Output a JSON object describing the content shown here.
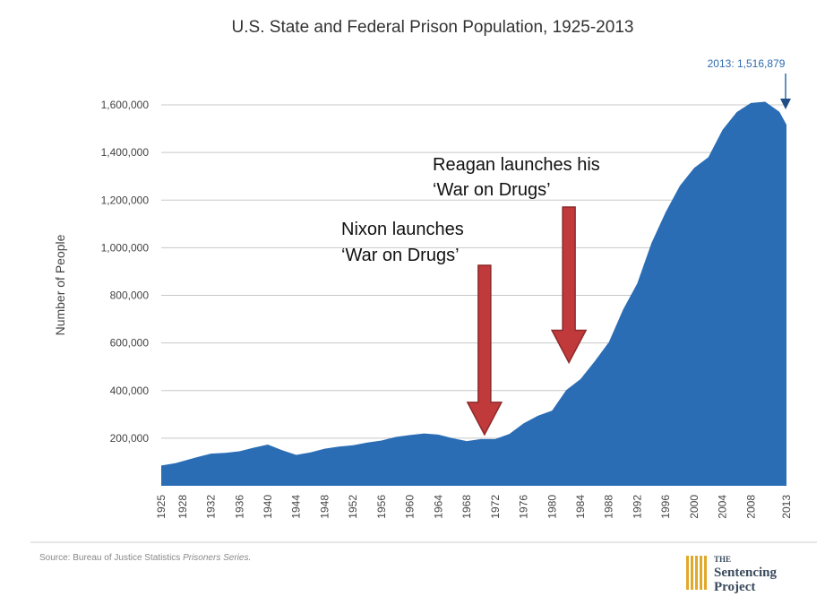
{
  "chart_data": {
    "type": "area",
    "title": "U.S. State and Federal Prison Population, 1925-2013",
    "ylabel": "Number of People",
    "xlabel": "",
    "ylim": [
      0,
      1600000
    ],
    "y_ticks": [
      "200,000",
      "400,000",
      "600,000",
      "800,000",
      "1,000,000",
      "1,200,000",
      "1,400,000",
      "1,600,000"
    ],
    "x_ticks": [
      "1925",
      "1928",
      "1932",
      "1936",
      "1940",
      "1944",
      "1948",
      "1952",
      "1956",
      "1960",
      "1964",
      "1968",
      "1972",
      "1976",
      "1980",
      "1984",
      "1988",
      "1992",
      "1996",
      "2000",
      "2004",
      "2008",
      "2013"
    ],
    "grid": true,
    "color": "#2a6db5",
    "x": [
      1925,
      1927,
      1930,
      1932,
      1934,
      1936,
      1938,
      1940,
      1942,
      1944,
      1946,
      1948,
      1950,
      1952,
      1954,
      1956,
      1958,
      1960,
      1962,
      1964,
      1966,
      1968,
      1970,
      1972,
      1974,
      1976,
      1978,
      1980,
      1982,
      1984,
      1986,
      1988,
      1990,
      1992,
      1994,
      1996,
      1998,
      2000,
      2002,
      2004,
      2006,
      2008,
      2010,
      2012,
      2013
    ],
    "values": [
      85000,
      95000,
      120000,
      135000,
      138000,
      145000,
      160000,
      173000,
      150000,
      130000,
      140000,
      156000,
      165000,
      170000,
      182000,
      190000,
      205000,
      213000,
      220000,
      215000,
      200000,
      188000,
      196000,
      196000,
      218000,
      262000,
      294000,
      316000,
      402000,
      448000,
      522000,
      603000,
      740000,
      850000,
      1020000,
      1150000,
      1260000,
      1335000,
      1380000,
      1495000,
      1570000,
      1608000,
      1613000,
      1571000,
      1516879
    ],
    "annotations": {
      "nixon": {
        "line1": "Nixon launches",
        "line2": "‘War on Drugs’",
        "year": 1971,
        "value": 200000
      },
      "reagan": {
        "line1": "Reagan launches his",
        "line2": "‘War on Drugs’",
        "year": 1982,
        "value": 480000
      },
      "callout": "2013: 1,516,879"
    },
    "source_prefix": "Source: Bureau of Justice Statistics ",
    "source_italic": "Prisoners Series.",
    "logo": {
      "the": "THE",
      "line1": "Sentencing",
      "line2": "Project"
    }
  }
}
